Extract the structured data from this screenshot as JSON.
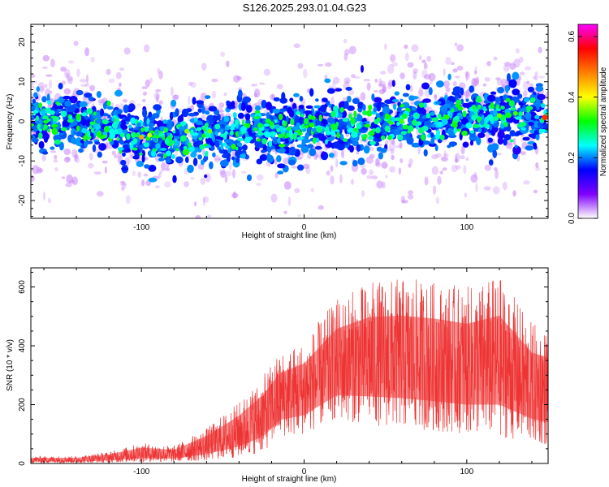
{
  "title": "S126.2025.293.01.04.G23",
  "chart_data": [
    {
      "type": "heatmap",
      "xlabel": "Height of straight line (km)",
      "ylabel": "Frequency (Hz)",
      "xlim": [
        -168,
        150
      ],
      "ylim": [
        -24.5,
        24.5
      ],
      "xticks": [
        -100,
        0,
        100
      ],
      "xtick_labels": [
        "-100",
        "0",
        "100"
      ],
      "yticks": [
        20,
        10,
        0,
        -10,
        -20
      ],
      "ytick_labels": [
        "20",
        "10",
        "0",
        "-10",
        "-20"
      ],
      "band_center_hz": [
        {
          "x": -168,
          "y": 1.0
        },
        {
          "x": -140,
          "y": 0.0
        },
        {
          "x": -110,
          "y": -2.5
        },
        {
          "x": -100,
          "y": -4.0
        },
        {
          "x": -80,
          "y": -4.5
        },
        {
          "x": -60,
          "y": -3.5
        },
        {
          "x": -40,
          "y": -3.0
        },
        {
          "x": -20,
          "y": -2.5
        },
        {
          "x": 0,
          "y": -2.0
        },
        {
          "x": 20,
          "y": -1.5
        },
        {
          "x": 40,
          "y": -1.0
        },
        {
          "x": 60,
          "y": 0.0
        },
        {
          "x": 80,
          "y": 0.5
        },
        {
          "x": 100,
          "y": 1.0
        },
        {
          "x": 120,
          "y": 1.5
        },
        {
          "x": 150,
          "y": 1.5
        }
      ],
      "peak_amplitude_at": {
        "x": 148,
        "y": 1.0
      },
      "colorbar": {
        "label": "Normalized spectral amplitude",
        "range": [
          0,
          0.64
        ],
        "ticks": [
          0.0,
          0.2,
          0.4,
          0.6
        ],
        "tick_labels": [
          "0.0",
          "0.2",
          "0.4",
          "0.6"
        ],
        "colors": [
          "#ffffff",
          "#8000ff",
          "#0000ff",
          "#00ffff",
          "#00ff00",
          "#ffff00",
          "#ff8000",
          "#ff0000",
          "#ff00ff"
        ]
      }
    },
    {
      "type": "line",
      "xlabel": "Height of straight line (km)",
      "ylabel": "SNR (10 * v/v)",
      "xlim": [
        -168,
        150
      ],
      "ylim": [
        0,
        665
      ],
      "xticks": [
        -100,
        0,
        100
      ],
      "xtick_labels": [
        "-100",
        "0",
        "100"
      ],
      "yticks": [
        0,
        200,
        400,
        600
      ],
      "ytick_labels": [
        "0",
        "200",
        "400",
        "600"
      ],
      "color": "#ee3333",
      "envelope": [
        {
          "x": -168,
          "low": 2,
          "high": 25
        },
        {
          "x": -140,
          "low": 2,
          "high": 25
        },
        {
          "x": -120,
          "low": 3,
          "high": 40
        },
        {
          "x": -100,
          "low": 5,
          "high": 70
        },
        {
          "x": -80,
          "low": 5,
          "high": 60
        },
        {
          "x": -60,
          "low": 10,
          "high": 120
        },
        {
          "x": -40,
          "low": 20,
          "high": 210
        },
        {
          "x": -25,
          "low": 40,
          "high": 300
        },
        {
          "x": -15,
          "low": 90,
          "high": 380
        },
        {
          "x": 0,
          "low": 100,
          "high": 420
        },
        {
          "x": 20,
          "low": 150,
          "high": 560
        },
        {
          "x": 40,
          "low": 130,
          "high": 620
        },
        {
          "x": 60,
          "low": 120,
          "high": 630
        },
        {
          "x": 80,
          "low": 110,
          "high": 620
        },
        {
          "x": 100,
          "low": 100,
          "high": 600
        },
        {
          "x": 120,
          "low": 90,
          "high": 640
        },
        {
          "x": 140,
          "low": 70,
          "high": 480
        },
        {
          "x": 150,
          "low": 60,
          "high": 460
        }
      ]
    }
  ]
}
